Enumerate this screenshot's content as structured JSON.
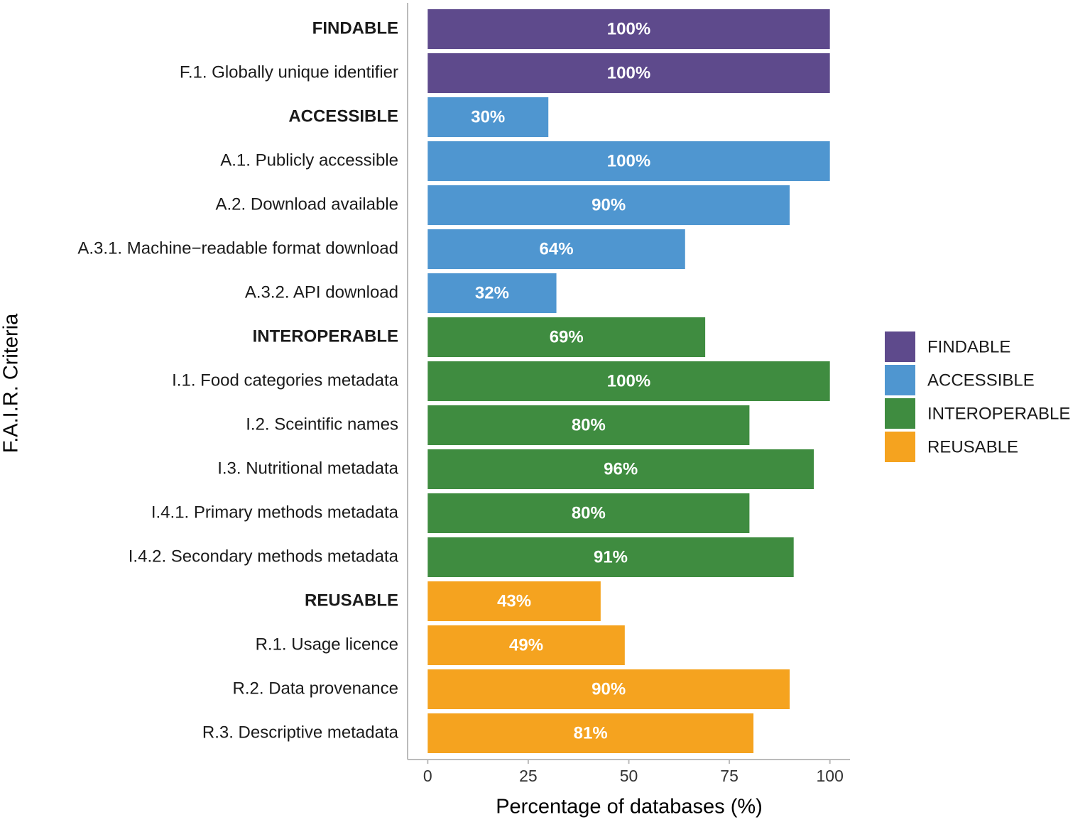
{
  "chart_data": {
    "type": "bar",
    "orientation": "horizontal",
    "x_label": "Percentage of databases (%)",
    "y_label": "F.A.I.R. Criteria",
    "categories": [
      "FINDABLE",
      "F.1. Globally unique identifier",
      "ACCESSIBLE",
      "A.1. Publicly accessible",
      "A.2. Download available",
      "A.3.1. Machine−readable format download",
      "A.3.2. API download",
      "INTEROPERABLE",
      "I.1. Food categories metadata",
      "I.2. Sceintific names",
      "I.3. Nutritional metadata",
      "I.4.1. Primary methods metadata",
      "I.4.2. Secondary methods metadata",
      "REUSABLE",
      "R.1. Usage licence",
      "R.2. Data provenance",
      "R.3. Descriptive metadata"
    ],
    "series": [
      {
        "name": "FINDABLE",
        "color": "#5e4a8c",
        "values": [
          100,
          100,
          null,
          null,
          null,
          null,
          null,
          null,
          null,
          null,
          null,
          null,
          null,
          null,
          null,
          null,
          null
        ],
        "value_labels": [
          "100%",
          "100%",
          null,
          null,
          null,
          null,
          null,
          null,
          null,
          null,
          null,
          null,
          null,
          null,
          null,
          null,
          null
        ]
      },
      {
        "name": "ACCESSIBLE",
        "color": "#4f96d0",
        "values": [
          null,
          null,
          30,
          100,
          90,
          64,
          32,
          null,
          null,
          null,
          null,
          null,
          null,
          null,
          null,
          null,
          null
        ],
        "value_labels": [
          null,
          null,
          "30%",
          "100%",
          "90%",
          "64%",
          "32%",
          null,
          null,
          null,
          null,
          null,
          null,
          null,
          null,
          null,
          null
        ]
      },
      {
        "name": "INTEROPERABLE",
        "color": "#3f8c40",
        "values": [
          null,
          null,
          null,
          null,
          null,
          null,
          null,
          69,
          100,
          80,
          96,
          80,
          91,
          null,
          null,
          null,
          null
        ],
        "value_labels": [
          null,
          null,
          null,
          null,
          null,
          null,
          null,
          "69%",
          "100%",
          "80%",
          "96%",
          "80%",
          "91%",
          null,
          null,
          null,
          null
        ]
      },
      {
        "name": "REUSABLE",
        "color": "#f5a31f",
        "values": [
          null,
          null,
          null,
          null,
          null,
          null,
          null,
          null,
          null,
          null,
          null,
          null,
          null,
          43,
          49,
          90,
          81
        ],
        "value_labels": [
          null,
          null,
          null,
          null,
          null,
          null,
          null,
          null,
          null,
          null,
          null,
          null,
          null,
          "43%",
          "49%",
          "90%",
          "81%"
        ]
      }
    ],
    "xlim": [
      -5,
      105
    ],
    "xticks": [
      0,
      25,
      50,
      75,
      100
    ],
    "grid": false,
    "legend": "right"
  }
}
